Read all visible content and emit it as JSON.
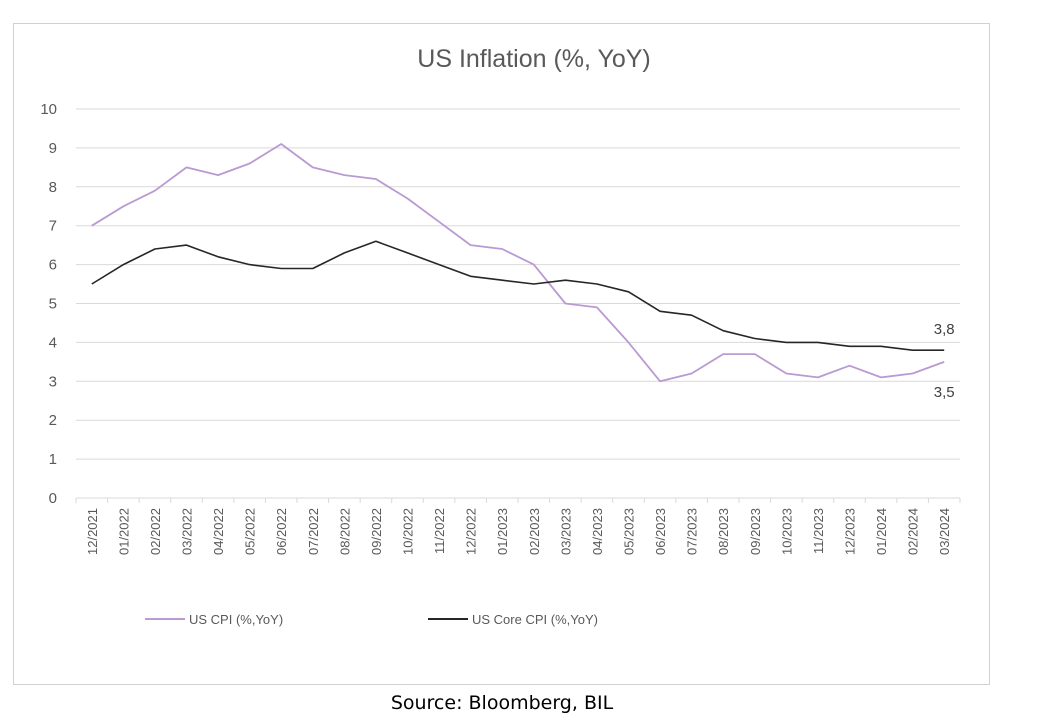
{
  "chart_data": {
    "type": "line",
    "title": "US Inflation (%, YoY)",
    "xlabel": "",
    "ylabel": "",
    "ylim": [
      0,
      10
    ],
    "yticks": [
      0,
      1,
      2,
      3,
      4,
      5,
      6,
      7,
      8,
      9,
      10
    ],
    "grid": true,
    "legend_position": "bottom-left",
    "categories": [
      "12/2021",
      "01/2022",
      "02/2022",
      "03/2022",
      "04/2022",
      "05/2022",
      "06/2022",
      "07/2022",
      "08/2022",
      "09/2022",
      "10/2022",
      "11/2022",
      "12/2022",
      "01/2023",
      "02/2023",
      "03/2023",
      "04/2023",
      "05/2023",
      "06/2023",
      "07/2023",
      "08/2023",
      "09/2023",
      "10/2023",
      "11/2023",
      "12/2023",
      "01/2024",
      "02/2024",
      "03/2024"
    ],
    "series": [
      {
        "name": "US CPI (%,YoY)",
        "color": "#b99ad2",
        "values": [
          7.0,
          7.5,
          7.9,
          8.5,
          8.3,
          8.6,
          9.1,
          8.5,
          8.3,
          8.2,
          7.7,
          7.1,
          6.5,
          6.4,
          6.0,
          5.0,
          4.9,
          4.0,
          3.0,
          3.2,
          3.7,
          3.7,
          3.2,
          3.1,
          3.4,
          3.1,
          3.2,
          3.5
        ],
        "end_label": "3,5"
      },
      {
        "name": "US Core CPI (%,YoY)",
        "color": "#262626",
        "values": [
          5.5,
          6.0,
          6.4,
          6.5,
          6.2,
          6.0,
          5.9,
          5.9,
          6.3,
          6.6,
          6.3,
          6.0,
          5.7,
          5.6,
          5.5,
          5.6,
          5.5,
          5.3,
          4.8,
          4.7,
          4.3,
          4.1,
          4.0,
          4.0,
          3.9,
          3.9,
          3.8,
          3.8
        ],
        "end_label": "3,8"
      }
    ]
  },
  "source": "Source: Bloomberg, BIL"
}
